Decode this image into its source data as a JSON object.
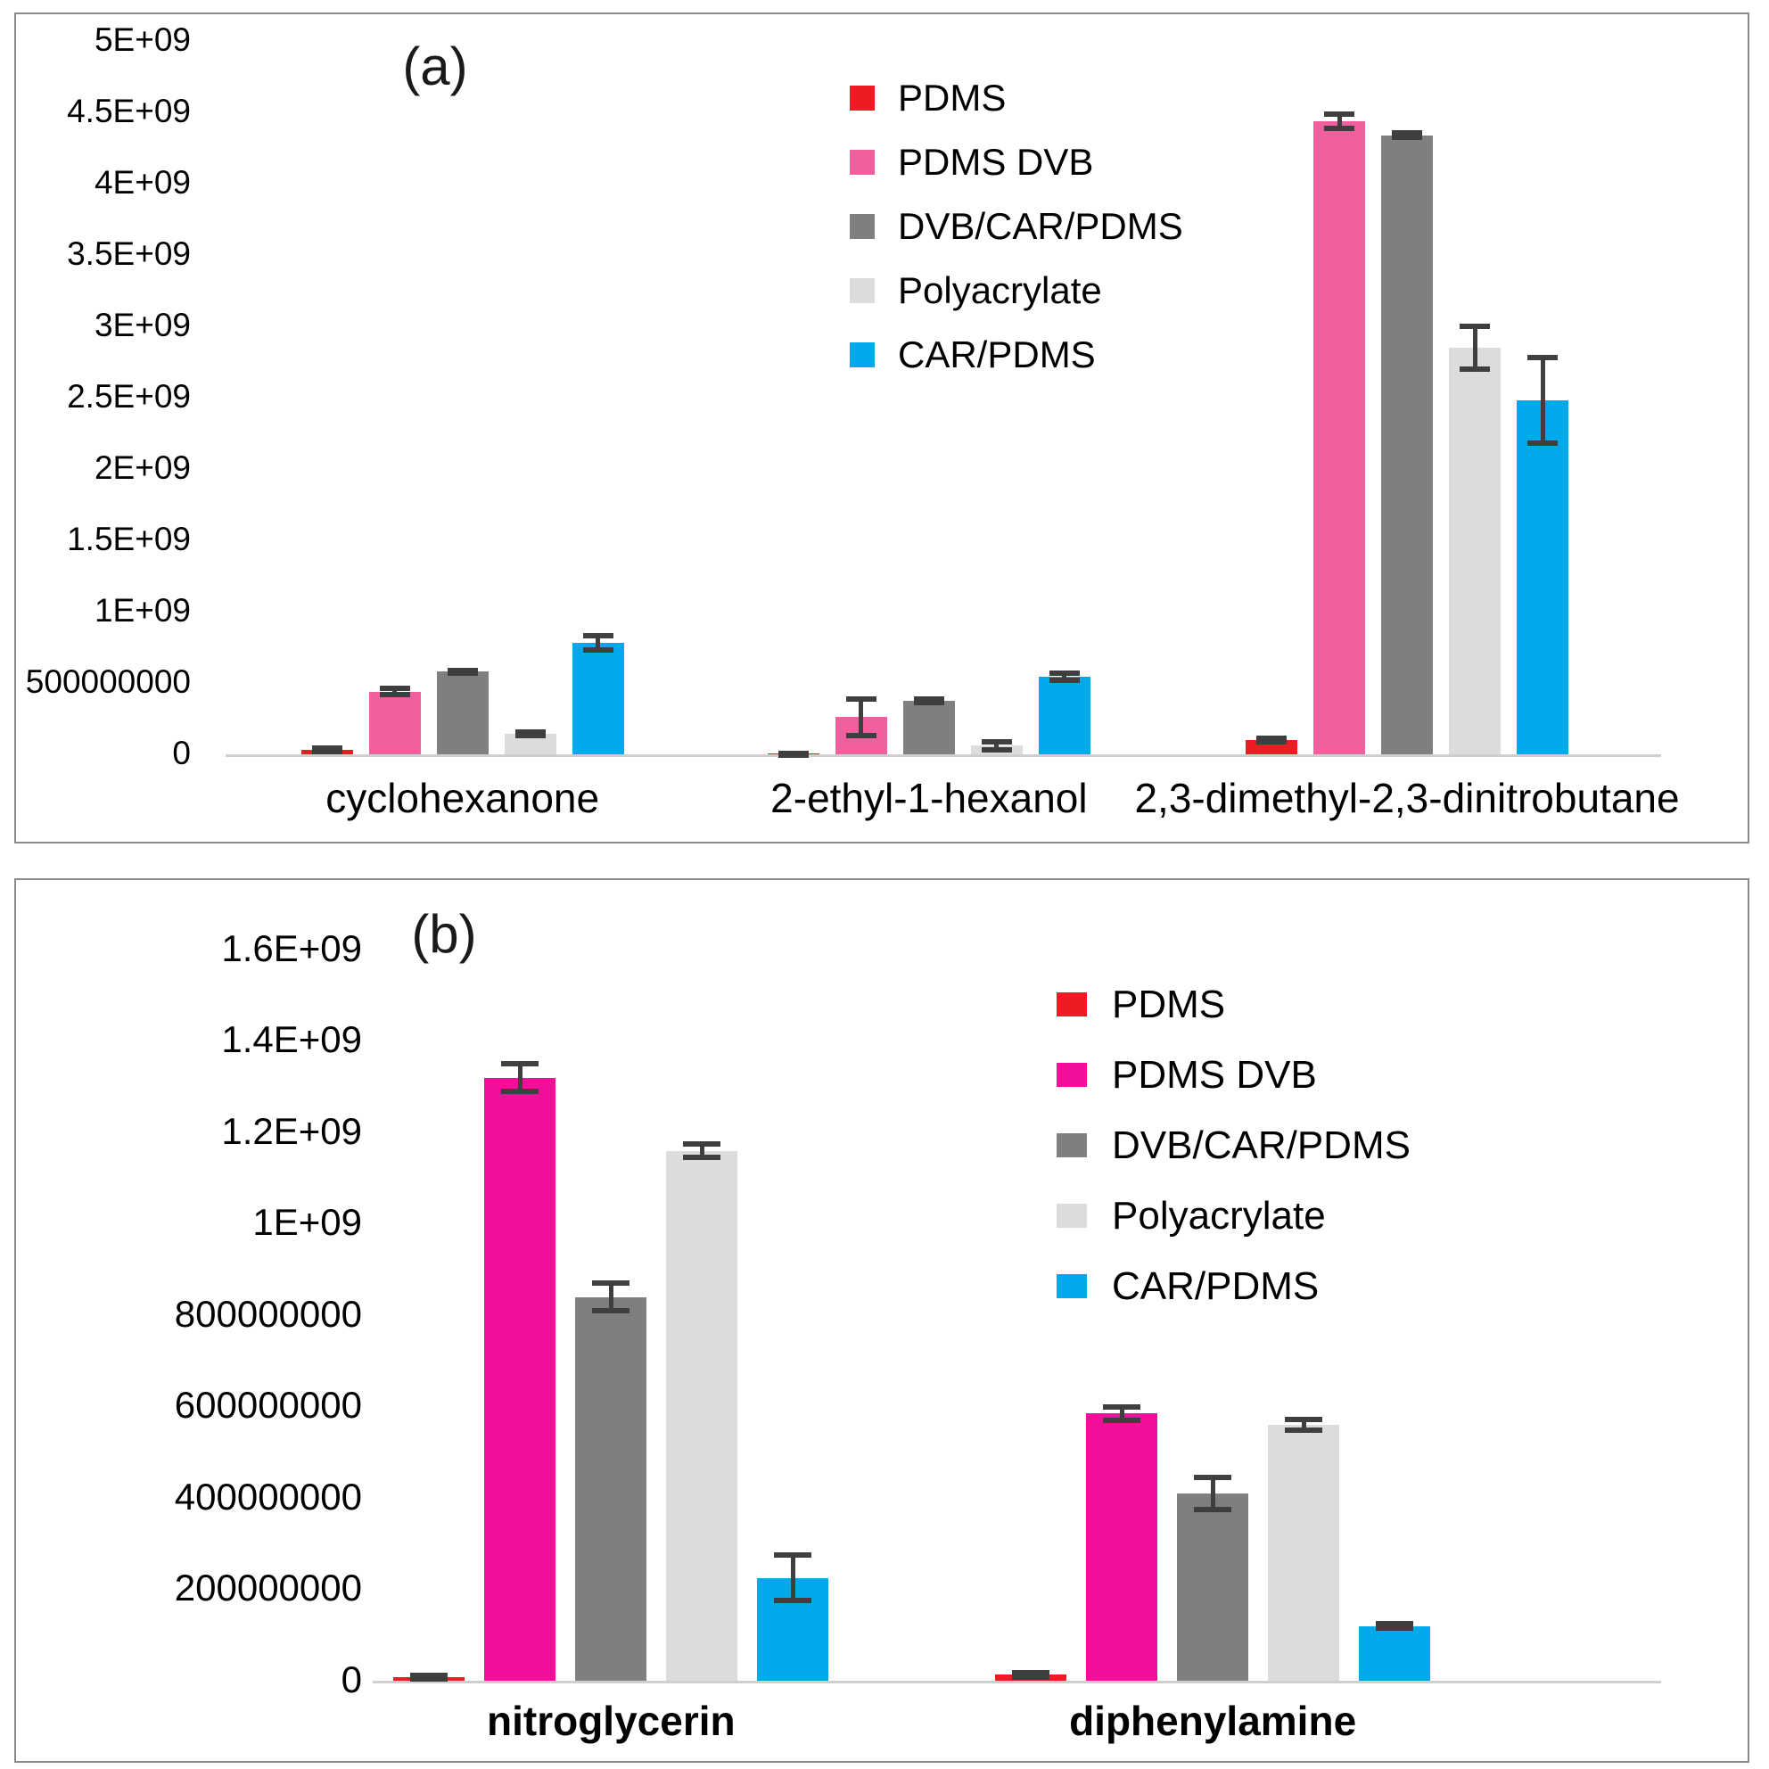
{
  "colors": {
    "red": "#EE1B24",
    "pink_panel_a": "#F0609F",
    "pink_panel_b": "#F01099",
    "dark_gray": "#7F7F7F",
    "light_gray": "#DCDCDC",
    "blue": "#00A9EA",
    "error_bar": "#3F3F3F",
    "axis_line": "#CFCFCF",
    "panel_border": "#8A8A8A"
  },
  "chart_data": [
    {
      "type": "bar",
      "panel_label": "(a)",
      "title": "",
      "xlabel": "",
      "ylabel": "",
      "grid": false,
      "legend_position": "top-right-inside",
      "ylim": [
        0,
        5000000000
      ],
      "categories": [
        "cyclohexanone",
        "2-ethyl-1-hexanol",
        "2,3-dimethyl-2,3-dinitrobutane"
      ],
      "yticks": [
        {
          "label": "5E+09",
          "value": 5000000000
        },
        {
          "label": "4.5E+09",
          "value": 4500000000
        },
        {
          "label": "4E+09",
          "value": 4000000000
        },
        {
          "label": "3.5E+09",
          "value": 3500000000
        },
        {
          "label": "3E+09",
          "value": 3000000000
        },
        {
          "label": "2.5E+09",
          "value": 2500000000
        },
        {
          "label": "2E+09",
          "value": 2000000000
        },
        {
          "label": "1.5E+09",
          "value": 1500000000
        },
        {
          "label": "1E+09",
          "value": 1000000000
        },
        {
          "label": "500000000",
          "value": 500000000
        },
        {
          "label": "0",
          "value": 0
        }
      ],
      "series": [
        {
          "name": "PDMS",
          "color": "#EE1B24",
          "values": [
            30000000,
            5000000,
            100000000
          ],
          "errors": [
            12000000,
            3000000,
            10000000
          ]
        },
        {
          "name": "PDMS DVB",
          "color": "#F0609F",
          "values": [
            440000000,
            260000000,
            4440000000
          ],
          "errors": [
            20000000,
            130000000,
            50000000
          ]
        },
        {
          "name": "DVB/CAR/PDMS",
          "color": "#7F7F7F",
          "values": [
            580000000,
            375000000,
            4340000000
          ],
          "errors": [
            10000000,
            12000000,
            15000000
          ]
        },
        {
          "name": "Polyacrylate",
          "color": "#DCDCDC",
          "values": [
            145000000,
            60000000,
            2850000000
          ],
          "errors": [
            12000000,
            30000000,
            150000000
          ]
        },
        {
          "name": "CAR/PDMS",
          "color": "#00A9EA",
          "values": [
            780000000,
            545000000,
            2480000000
          ],
          "errors": [
            50000000,
            25000000,
            300000000
          ]
        }
      ]
    },
    {
      "type": "bar",
      "panel_label": "(b)",
      "title": "",
      "xlabel": "",
      "ylabel": "",
      "grid": false,
      "legend_position": "top-right-inside",
      "ylim": [
        0,
        1600000000
      ],
      "categories": [
        "nitroglycerin",
        "diphenylamine"
      ],
      "yticks": [
        {
          "label": "1.6E+09",
          "value": 1600000000
        },
        {
          "label": "1.4E+09",
          "value": 1400000000
        },
        {
          "label": "1.2E+09",
          "value": 1200000000
        },
        {
          "label": "1E+09",
          "value": 1000000000
        },
        {
          "label": "800000000",
          "value": 800000000
        },
        {
          "label": "600000000",
          "value": 600000000
        },
        {
          "label": "400000000",
          "value": 400000000
        },
        {
          "label": "200000000",
          "value": 200000000
        },
        {
          "label": "0",
          "value": 0
        }
      ],
      "series": [
        {
          "name": "PDMS",
          "color": "#EE1B24",
          "values": [
            8000000,
            13000000
          ],
          "errors": [
            4000000,
            5000000
          ]
        },
        {
          "name": "PDMS DVB",
          "color": "#F01099",
          "values": [
            1320000000,
            585000000
          ],
          "errors": [
            30000000,
            15000000
          ]
        },
        {
          "name": "DVB/CAR/PDMS",
          "color": "#7F7F7F",
          "values": [
            840000000,
            410000000
          ],
          "errors": [
            30000000,
            35000000
          ]
        },
        {
          "name": "Polyacrylate",
          "color": "#DCDCDC",
          "values": [
            1160000000,
            560000000
          ],
          "errors": [
            15000000,
            12000000
          ]
        },
        {
          "name": "CAR/PDMS",
          "color": "#00A9EA",
          "values": [
            225000000,
            120000000
          ],
          "errors": [
            50000000,
            5000000
          ]
        }
      ]
    }
  ]
}
